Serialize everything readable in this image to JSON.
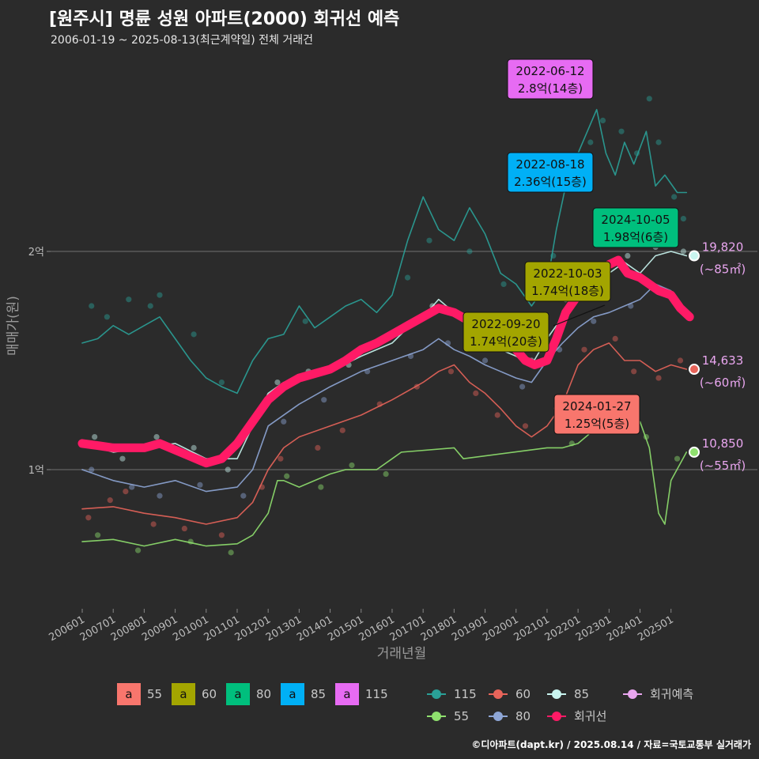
{
  "header": {
    "title": "[원주시] 명륜 성원 아파트(2000) 회귀선 예측",
    "subtitle": "2006-01-19 ~ 2025-08-13(최근계약일) 전체 거래건"
  },
  "credit": "©디아파트(dapt.kr) / 2025.08.14 / 자료=국토교통부 실거래가",
  "colors": {
    "s55": "#f8766d",
    "s60": "#a3a500",
    "s80": "#00bf7d",
    "s85": "#00b0f6",
    "s115": "#e76bf3",
    "l115": "#2aa198",
    "l60": "#e8645a",
    "l85": "#c9f5f0",
    "l55": "#8fe06e",
    "l80": "#8ea6d6",
    "regression": "#ff1a66",
    "forecast": "#e9a6ef",
    "background": "#2b2b2b"
  },
  "chart_data": {
    "type": "line",
    "title": "[원주시] 명륜 성원 아파트(2000) 회귀선 예측",
    "xlabel": "거래년월",
    "ylabel": "매매가(원)",
    "xlim": [
      2006.0,
      2026.0
    ],
    "ylim": [
      0.4,
      2.8
    ],
    "yticks": [
      {
        "value": 1,
        "label": "1억"
      },
      {
        "value": 2,
        "label": "2억"
      }
    ],
    "xticks": [
      "200601",
      "200701",
      "200801",
      "200901",
      "201001",
      "201101",
      "201201",
      "201301",
      "201401",
      "201501",
      "201601",
      "201701",
      "201801",
      "201901",
      "202001",
      "202101",
      "202201",
      "202301",
      "202401",
      "202501"
    ],
    "series": [
      {
        "name": "115",
        "key": "l115",
        "x": [
          2006.0,
          2006.5,
          2007.0,
          2007.5,
          2008.0,
          2008.5,
          2009.0,
          2009.5,
          2010.0,
          2010.5,
          2011.0,
          2011.5,
          2012.0,
          2012.5,
          2013.0,
          2013.5,
          2014.0,
          2014.5,
          2015.0,
          2015.5,
          2016.0,
          2016.5,
          2017.0,
          2017.5,
          2018.0,
          2018.5,
          2019.0,
          2019.5,
          2020.0,
          2020.5,
          2021.0,
          2021.3,
          2021.6,
          2022.0,
          2022.3,
          2022.6,
          2022.9,
          2023.2,
          2023.5,
          2023.8,
          2024.2,
          2024.5,
          2024.8,
          2025.2,
          2025.5
        ],
        "values": [
          1.58,
          1.6,
          1.66,
          1.62,
          1.66,
          1.7,
          1.6,
          1.5,
          1.42,
          1.38,
          1.35,
          1.5,
          1.6,
          1.62,
          1.75,
          1.65,
          1.7,
          1.75,
          1.78,
          1.72,
          1.8,
          2.05,
          2.25,
          2.1,
          2.05,
          2.2,
          2.08,
          1.9,
          1.85,
          1.75,
          1.85,
          2.1,
          2.3,
          2.45,
          2.55,
          2.65,
          2.45,
          2.35,
          2.5,
          2.4,
          2.55,
          2.3,
          2.35,
          2.27,
          2.27
        ]
      },
      {
        "name": "60",
        "key": "l60",
        "x": [
          2006.0,
          2007.0,
          2008.0,
          2009.0,
          2010.0,
          2011.0,
          2011.5,
          2012.0,
          2012.5,
          2013.0,
          2014.0,
          2015.0,
          2016.0,
          2017.0,
          2017.5,
          2018.0,
          2018.5,
          2019.0,
          2019.5,
          2020.0,
          2020.5,
          2021.0,
          2021.5,
          2022.0,
          2022.5,
          2023.0,
          2023.5,
          2024.0,
          2024.5,
          2025.0,
          2025.5
        ],
        "values": [
          0.82,
          0.83,
          0.8,
          0.78,
          0.75,
          0.78,
          0.85,
          1.0,
          1.1,
          1.15,
          1.2,
          1.25,
          1.32,
          1.4,
          1.45,
          1.48,
          1.4,
          1.35,
          1.28,
          1.2,
          1.15,
          1.2,
          1.3,
          1.48,
          1.55,
          1.58,
          1.5,
          1.5,
          1.45,
          1.48,
          1.46
        ]
      },
      {
        "name": "85",
        "key": "l85",
        "x": [
          2006.0,
          2007.0,
          2008.0,
          2009.0,
          2010.0,
          2011.0,
          2011.5,
          2012.0,
          2012.5,
          2013.0,
          2014.0,
          2015.0,
          2016.0,
          2016.5,
          2017.0,
          2017.5,
          2018.0,
          2018.5,
          2019.0,
          2019.5,
          2020.0,
          2020.5,
          2021.0,
          2021.5,
          2022.0,
          2022.5,
          2023.0,
          2023.5,
          2024.0,
          2024.5,
          2025.0,
          2025.5
        ],
        "values": [
          1.12,
          1.08,
          1.1,
          1.12,
          1.05,
          1.05,
          1.2,
          1.35,
          1.4,
          1.42,
          1.45,
          1.52,
          1.58,
          1.65,
          1.7,
          1.78,
          1.72,
          1.66,
          1.6,
          1.55,
          1.52,
          1.48,
          1.6,
          1.7,
          1.8,
          1.85,
          1.9,
          1.95,
          1.9,
          1.98,
          2.0,
          1.98
        ]
      },
      {
        "name": "55",
        "key": "l55",
        "x": [
          2006.0,
          2007.0,
          2008.0,
          2009.0,
          2010.0,
          2011.0,
          2011.5,
          2012.0,
          2012.3,
          2012.5,
          2013.0,
          2014.0,
          2014.5,
          2015.0,
          2015.5,
          2016.0,
          2016.3,
          2018.0,
          2018.3,
          2021.0,
          2021.5,
          2022.0,
          2022.5,
          2023.0,
          2023.5,
          2024.0,
          2024.3,
          2024.6,
          2024.8,
          2025.0,
          2025.5
        ],
        "values": [
          0.67,
          0.68,
          0.65,
          0.68,
          0.65,
          0.66,
          0.7,
          0.8,
          0.95,
          0.95,
          0.92,
          0.98,
          1.0,
          1.0,
          1.0,
          1.05,
          1.08,
          1.1,
          1.05,
          1.1,
          1.1,
          1.12,
          1.18,
          1.25,
          1.22,
          1.22,
          1.1,
          0.8,
          0.75,
          0.95,
          1.08
        ]
      },
      {
        "name": "80",
        "key": "l80",
        "x": [
          2006.0,
          2007.0,
          2008.0,
          2009.0,
          2010.0,
          2011.0,
          2011.5,
          2012.0,
          2013.0,
          2014.0,
          2015.0,
          2016.0,
          2017.0,
          2017.5,
          2018.0,
          2018.5,
          2019.0,
          2019.5,
          2020.0,
          2020.5,
          2021.0,
          2021.5,
          2022.0,
          2022.5,
          2023.0,
          2023.5,
          2024.0,
          2024.5,
          2025.0
        ],
        "values": [
          1.0,
          0.95,
          0.92,
          0.95,
          0.9,
          0.92,
          1.0,
          1.2,
          1.3,
          1.38,
          1.45,
          1.5,
          1.55,
          1.6,
          1.55,
          1.52,
          1.48,
          1.45,
          1.42,
          1.4,
          1.5,
          1.58,
          1.65,
          1.7,
          1.72,
          1.75,
          1.78,
          1.85,
          1.82
        ]
      },
      {
        "name": "회귀선",
        "key": "regression",
        "x": [
          2006.0,
          2006.5,
          2007.0,
          2007.5,
          2008.0,
          2008.5,
          2009.0,
          2009.5,
          2010.0,
          2010.5,
          2011.0,
          2011.5,
          2012.0,
          2012.5,
          2013.0,
          2013.5,
          2014.0,
          2014.5,
          2015.0,
          2015.5,
          2016.0,
          2016.5,
          2017.0,
          2017.5,
          2018.0,
          2018.5,
          2019.0,
          2019.5,
          2020.0,
          2020.3,
          2020.6,
          2021.0,
          2021.3,
          2021.6,
          2022.0,
          2022.3,
          2022.6,
          2023.0,
          2023.3,
          2023.6,
          2024.0,
          2024.3,
          2024.6,
          2025.0,
          2025.3,
          2025.6
        ],
        "values": [
          1.12,
          1.11,
          1.1,
          1.1,
          1.1,
          1.12,
          1.09,
          1.06,
          1.03,
          1.05,
          1.12,
          1.22,
          1.32,
          1.38,
          1.42,
          1.44,
          1.46,
          1.5,
          1.55,
          1.58,
          1.62,
          1.66,
          1.7,
          1.74,
          1.72,
          1.68,
          1.65,
          1.62,
          1.55,
          1.5,
          1.48,
          1.5,
          1.6,
          1.72,
          1.8,
          1.86,
          1.9,
          1.94,
          1.96,
          1.9,
          1.88,
          1.85,
          1.82,
          1.8,
          1.74,
          1.7
        ]
      }
    ],
    "scatter_groups": [
      {
        "key": "l115",
        "points": [
          [
            2006.3,
            1.75
          ],
          [
            2006.8,
            1.7
          ],
          [
            2007.5,
            1.78
          ],
          [
            2008.2,
            1.75
          ],
          [
            2008.5,
            1.8
          ],
          [
            2009.6,
            1.62
          ],
          [
            2010.5,
            1.4
          ],
          [
            2013.2,
            1.68
          ],
          [
            2016.5,
            1.88
          ],
          [
            2017.2,
            2.05
          ],
          [
            2018.5,
            2.0
          ],
          [
            2019.6,
            1.85
          ],
          [
            2021.2,
            1.98
          ],
          [
            2022.1,
            2.35
          ],
          [
            2022.4,
            2.5
          ],
          [
            2022.8,
            2.6
          ],
          [
            2023.4,
            2.55
          ],
          [
            2023.9,
            2.45
          ],
          [
            2024.3,
            2.7
          ],
          [
            2024.6,
            2.5
          ],
          [
            2025.1,
            2.25
          ],
          [
            2025.4,
            2.15
          ]
        ]
      },
      {
        "key": "l60",
        "points": [
          [
            2006.2,
            0.78
          ],
          [
            2006.9,
            0.86
          ],
          [
            2007.4,
            0.9
          ],
          [
            2008.3,
            0.75
          ],
          [
            2009.3,
            0.73
          ],
          [
            2010.5,
            0.7
          ],
          [
            2011.8,
            0.92
          ],
          [
            2012.4,
            1.05
          ],
          [
            2013.6,
            1.1
          ],
          [
            2014.4,
            1.18
          ],
          [
            2015.6,
            1.3
          ],
          [
            2016.8,
            1.38
          ],
          [
            2017.9,
            1.45
          ],
          [
            2018.7,
            1.35
          ],
          [
            2019.4,
            1.25
          ],
          [
            2020.3,
            1.2
          ],
          [
            2021.3,
            1.28
          ],
          [
            2022.2,
            1.55
          ],
          [
            2023.2,
            1.6
          ],
          [
            2023.8,
            1.45
          ],
          [
            2024.6,
            1.42
          ],
          [
            2025.3,
            1.5
          ]
        ]
      },
      {
        "key": "l85",
        "points": [
          [
            2006.4,
            1.15
          ],
          [
            2007.3,
            1.05
          ],
          [
            2008.4,
            1.15
          ],
          [
            2009.6,
            1.1
          ],
          [
            2010.7,
            1.0
          ],
          [
            2012.3,
            1.4
          ],
          [
            2013.3,
            1.45
          ],
          [
            2014.6,
            1.48
          ],
          [
            2016.0,
            1.62
          ],
          [
            2017.3,
            1.75
          ],
          [
            2018.4,
            1.7
          ],
          [
            2019.3,
            1.62
          ],
          [
            2020.5,
            1.5
          ],
          [
            2021.6,
            1.78
          ],
          [
            2022.6,
            1.88
          ],
          [
            2023.6,
            1.98
          ],
          [
            2024.5,
            2.02
          ],
          [
            2025.4,
            2.0
          ]
        ]
      },
      {
        "key": "l55",
        "points": [
          [
            2006.5,
            0.7
          ],
          [
            2007.8,
            0.63
          ],
          [
            2009.5,
            0.67
          ],
          [
            2010.8,
            0.62
          ],
          [
            2012.6,
            0.97
          ],
          [
            2013.7,
            0.92
          ],
          [
            2014.7,
            1.02
          ],
          [
            2015.8,
            0.98
          ],
          [
            2021.8,
            1.12
          ],
          [
            2023.1,
            1.2
          ],
          [
            2024.2,
            1.15
          ],
          [
            2025.2,
            1.05
          ]
        ]
      },
      {
        "key": "l80",
        "points": [
          [
            2006.3,
            1.0
          ],
          [
            2007.6,
            0.92
          ],
          [
            2008.5,
            0.88
          ],
          [
            2009.8,
            0.93
          ],
          [
            2011.2,
            0.88
          ],
          [
            2012.5,
            1.22
          ],
          [
            2013.8,
            1.32
          ],
          [
            2015.2,
            1.45
          ],
          [
            2016.6,
            1.52
          ],
          [
            2017.8,
            1.58
          ],
          [
            2019.0,
            1.5
          ],
          [
            2020.2,
            1.38
          ],
          [
            2021.4,
            1.55
          ],
          [
            2022.5,
            1.68
          ],
          [
            2023.7,
            1.75
          ],
          [
            2024.8,
            1.82
          ]
        ]
      }
    ],
    "annotations": [
      {
        "date": "2022-06-12",
        "price": "2.8억(14층)",
        "key": "s115"
      },
      {
        "date": "2022-08-18",
        "price": "2.36억(15층)",
        "key": "s85"
      },
      {
        "date": "2024-10-05",
        "price": "1.98억(6층)",
        "key": "s80"
      },
      {
        "date": "2022-10-03",
        "price": "1.74억(18층)",
        "key": "s60"
      },
      {
        "date": "2022-09-20",
        "price": "1.74억(20층)",
        "key": "s60"
      },
      {
        "date": "2024-01-27",
        "price": "1.25억(5층)",
        "key": "s55"
      }
    ],
    "end_labels": [
      {
        "value": "19,820",
        "area": "(~85㎡)",
        "y": 1.98,
        "key": "l85"
      },
      {
        "value": "14,633",
        "area": "(~60㎡)",
        "y": 1.46,
        "key": "l60"
      },
      {
        "value": "10,850",
        "area": "(~55㎡)",
        "y": 1.08,
        "key": "l55"
      }
    ],
    "legend_fill": [
      {
        "label": "55",
        "key": "s55"
      },
      {
        "label": "60",
        "key": "s60"
      },
      {
        "label": "80",
        "key": "s80"
      },
      {
        "label": "85",
        "key": "s85"
      },
      {
        "label": "115",
        "key": "s115"
      }
    ],
    "legend_glyph": "a",
    "legend_line": [
      {
        "label": "115",
        "key": "l115"
      },
      {
        "label": "60",
        "key": "l60"
      },
      {
        "label": "85",
        "key": "l85"
      },
      {
        "label": "회귀예측",
        "key": "forecast"
      },
      {
        "label": "55",
        "key": "l55"
      },
      {
        "label": "80",
        "key": "l80"
      },
      {
        "label": "회귀선",
        "key": "regression"
      }
    ]
  }
}
